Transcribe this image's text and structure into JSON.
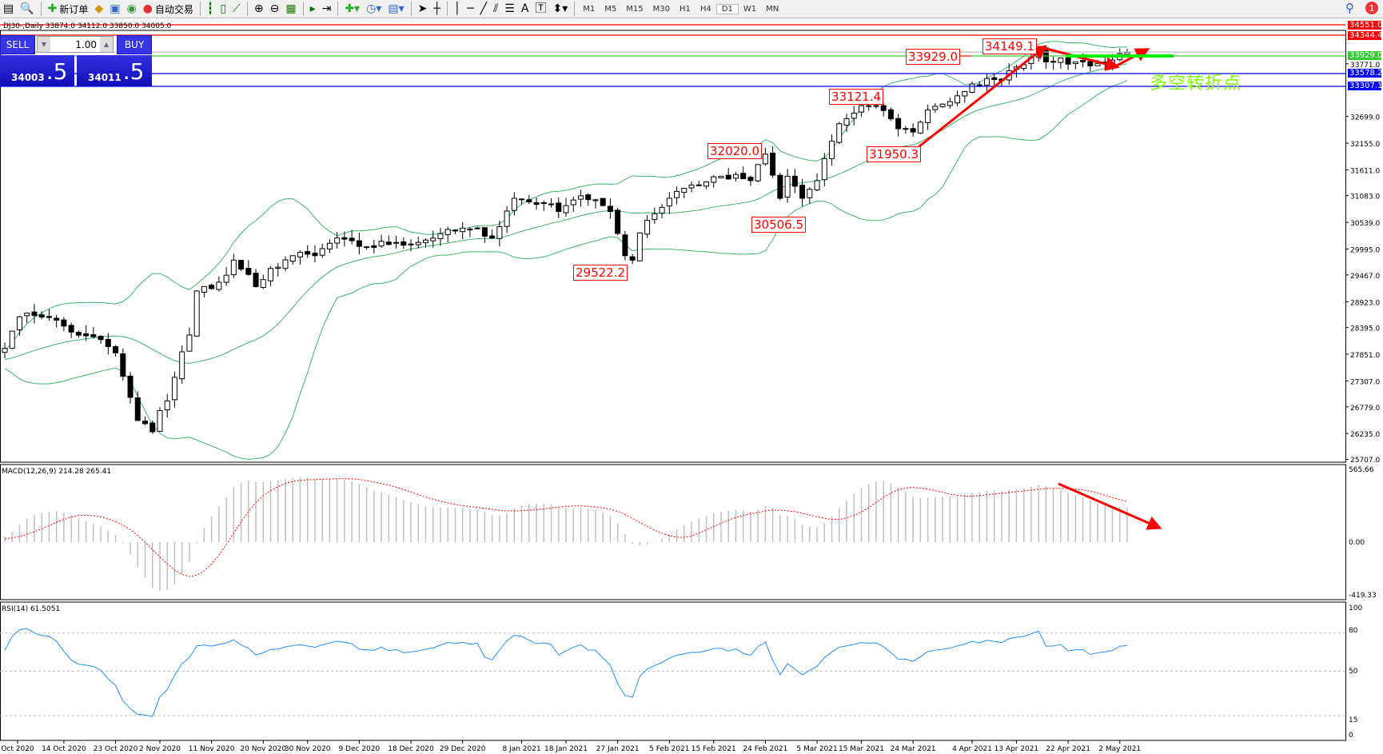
{
  "toolbar": {
    "new_order": "新订单",
    "auto_trading": "自动交易",
    "timeframes": [
      "M1",
      "M5",
      "M15",
      "M30",
      "H1",
      "H4",
      "D1",
      "W1",
      "MN"
    ],
    "active_timeframe": "D1",
    "notifications": "1"
  },
  "chart": {
    "title": "DJ30-,Daily  33874.0 34112.0 33850.0 34005.0",
    "symbol": "DJ30-",
    "period": "Daily",
    "open": "33874.0",
    "high": "34112.0",
    "low": "33850.0",
    "close": "34005.0"
  },
  "trade_panel": {
    "sell_label": "SELL",
    "buy_label": "BUY",
    "lot": "1.00",
    "sell_price_main": "34003",
    "sell_price_pips": ".5",
    "buy_price_main": "34011",
    "buy_price_pips": ".5"
  },
  "price_tags": [
    {
      "text": "34551.0",
      "color": "#ff0000"
    },
    {
      "text": "34344.4",
      "color": "#ff0000"
    },
    {
      "text": "33929.0",
      "color": "#33cc33"
    },
    {
      "text": "33578.2",
      "color": "#0000ff"
    },
    {
      "text": "33307.1",
      "color": "#0000ff"
    }
  ],
  "annotations": [
    "34149.1",
    "33929.0",
    "33121.4",
    "32020.0",
    "31950.3",
    "30506.5",
    "29522.2"
  ],
  "turn_text": "多空转折点",
  "macd": {
    "label": "MACD(12,26,9) 214.28 265.41",
    "axis": [
      "565.66",
      "0.00",
      "-419.33"
    ]
  },
  "rsi": {
    "label": "RSI(14) 61.5051",
    "axis": [
      "100",
      "80",
      "50",
      "15",
      "0"
    ]
  },
  "chart_data": {
    "type": "candlestick",
    "price_axis": [
      "34551.0",
      "34344.4",
      "33929.0",
      "33771.0",
      "33578.2",
      "33307.1",
      "32699.0",
      "32155.0",
      "31611.0",
      "31083.0",
      "30539.0",
      "29995.0",
      "29467.0",
      "28923.0",
      "28395.0",
      "27851.0",
      "27307.0",
      "26779.0",
      "26235.0",
      "25707.0"
    ],
    "ylim": [
      25707,
      34551
    ],
    "time_axis": [
      "Oct 2020",
      "14 Oct 2020",
      "23 Oct 2020",
      "2 Nov 2020",
      "11 Nov 2020",
      "20 Nov 2020",
      "30 Nov 2020",
      "9 Dec 2020",
      "18 Dec 2020",
      "29 Dec 2020",
      "8 Jan 2021",
      "18 Jan 2021",
      "27 Jan 2021",
      "5 Feb 2021",
      "15 Feb 2021",
      "24 Feb 2021",
      "5 Mar 2021",
      "15 Mar 2021",
      "24 Mar 2021",
      "4 Apr 2021",
      "13 Apr 2021",
      "22 Apr 2021",
      "2 May 2021"
    ],
    "approx_closes": [
      [
        "2020-10-02",
        27970
      ],
      [
        "2020-10-07",
        28690
      ],
      [
        "2020-10-12",
        28600
      ],
      [
        "2020-10-16",
        28240
      ],
      [
        "2020-10-21",
        28150
      ],
      [
        "2020-10-26",
        27400
      ],
      [
        "2020-10-28",
        26500
      ],
      [
        "2020-10-30",
        26270
      ],
      [
        "2020-11-03",
        26900
      ],
      [
        "2020-11-05",
        27900
      ],
      [
        "2020-11-09",
        29140
      ],
      [
        "2020-11-12",
        29320
      ],
      [
        "2020-11-16",
        29770
      ],
      [
        "2020-11-19",
        29230
      ],
      [
        "2020-11-23",
        29600
      ],
      [
        "2020-11-26",
        29860
      ],
      [
        "2020-12-01",
        29860
      ],
      [
        "2020-12-04",
        30220
      ],
      [
        "2020-12-10",
        30040
      ],
      [
        "2020-12-16",
        30130
      ],
      [
        "2020-12-21",
        30130
      ],
      [
        "2020-12-24",
        30310
      ],
      [
        "2020-12-30",
        30400
      ],
      [
        "2021-01-04",
        30220
      ],
      [
        "2021-01-07",
        31030
      ],
      [
        "2021-01-13",
        30940
      ],
      [
        "2021-01-15",
        30760
      ],
      [
        "2021-01-20",
        31080
      ],
      [
        "2021-01-26",
        30760
      ],
      [
        "2021-01-28",
        29860
      ],
      [
        "2021-01-29",
        29770
      ],
      [
        "2021-02-02",
        30580
      ],
      [
        "2021-02-05",
        31030
      ],
      [
        "2021-02-10",
        31300
      ],
      [
        "2021-02-16",
        31480
      ],
      [
        "2021-02-22",
        31390
      ],
      [
        "2021-02-24",
        31930
      ],
      [
        "2021-02-26",
        31030
      ],
      [
        "2021-03-01",
        31480
      ],
      [
        "2021-03-03",
        31030
      ],
      [
        "2021-03-05",
        31390
      ],
      [
        "2021-03-08",
        31840
      ],
      [
        "2021-03-10",
        32550
      ],
      [
        "2021-03-15",
        32920
      ],
      [
        "2021-03-17",
        32920
      ],
      [
        "2021-03-19",
        32650
      ],
      [
        "2021-03-24",
        32380
      ],
      [
        "2021-03-26",
        32830
      ],
      [
        "2021-03-31",
        33000
      ],
      [
        "2021-04-05",
        33360
      ],
      [
        "2021-04-08",
        33450
      ],
      [
        "2021-04-12",
        33630
      ],
      [
        "2021-04-15",
        33900
      ],
      [
        "2021-04-16",
        34080
      ],
      [
        "2021-04-20",
        33810
      ],
      [
        "2021-04-23",
        33810
      ],
      [
        "2021-04-28",
        33780
      ],
      [
        "2021-04-30",
        33850
      ],
      [
        "2021-05-04",
        34005
      ]
    ],
    "highlights": {
      "34149.1": "2021-04-16",
      "31950.3": "2021-03-25",
      "33121.4": "2021-03-18",
      "32020.0": "2021-02-25",
      "30506.5": "2021-03-04",
      "29522.2": "2021-01-29"
    },
    "indicators": [
      "Bollinger Bands",
      "MACD(12,26,9)",
      "RSI(14)"
    ],
    "colors": {
      "bull": "#ffffff",
      "bear": "#000000",
      "bands": "#3cb371",
      "macd_hist": "#c0c0c0",
      "macd_signal": "#ff0000",
      "rsi": "#1e90ff",
      "arrows": "#ff0000"
    }
  }
}
